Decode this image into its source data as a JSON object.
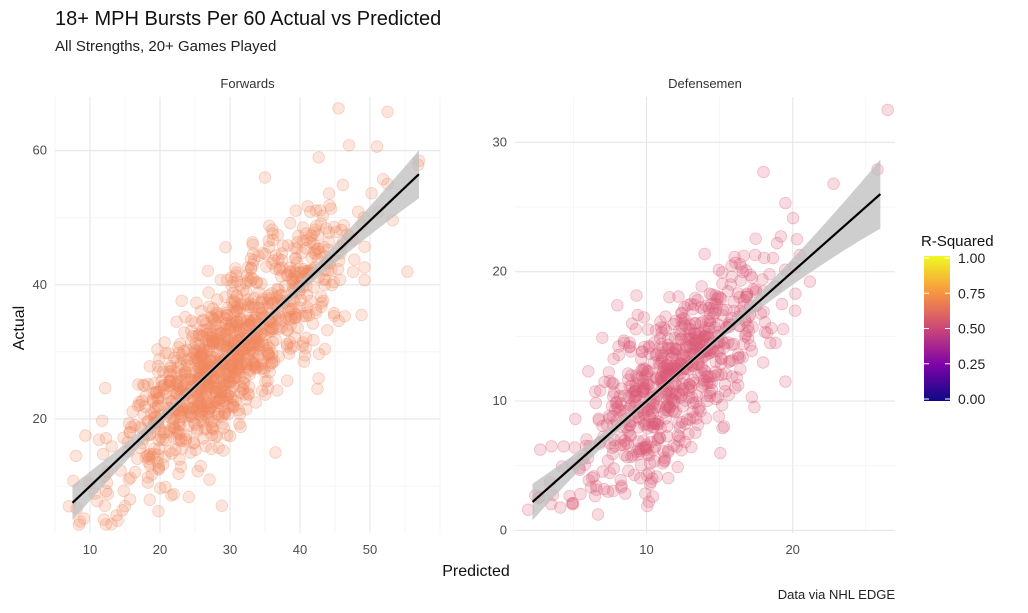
{
  "title": "18+ MPH Bursts Per 60 Actual vs Predicted",
  "subtitle": "All Strengths, 20+ Games Played",
  "caption": "Data via NHL EDGE",
  "colors": {
    "forwards_points": "#f0875f",
    "defensemen_points": "#dc5a78",
    "fit_line": "#000000",
    "ribbon": "#bdbdbd",
    "grid": "#ebebeb"
  },
  "chart_data": {
    "type": "scatter",
    "xlabel": "Predicted",
    "ylabel": "Actual",
    "grid": true,
    "legend": {
      "title": "R-Squared",
      "position": "right",
      "range": [
        0,
        1
      ],
      "ticks": [
        "1.00",
        "0.75",
        "0.50",
        "0.25",
        "0.00"
      ],
      "colormap": "plasma"
    },
    "panels": [
      {
        "name": "Forwards",
        "xlim": [
          5,
          60
        ],
        "ylim": [
          3,
          68
        ],
        "xticks": [
          10,
          20,
          30,
          40,
          50
        ],
        "yticks": [
          20,
          40,
          60
        ],
        "fit": {
          "x": [
            7.5,
            57
          ],
          "y": [
            7.5,
            56.5
          ]
        },
        "point_summary": {
          "count_approx": 1100,
          "x_center": 30,
          "x_sd": 8,
          "residual_sd": 5.5
        },
        "highlighted_points": [
          [
            45.5,
            66.3
          ],
          [
            52.5,
            65.8
          ],
          [
            47,
            60.8
          ],
          [
            51,
            60.6
          ],
          [
            57,
            58.5
          ],
          [
            35,
            56
          ],
          [
            8,
            14.5
          ],
          [
            12,
            5
          ],
          [
            7,
            7
          ],
          [
            15,
            7
          ],
          [
            36.5,
            15
          ],
          [
            42.5,
            24.5
          ]
        ]
      },
      {
        "name": "Defensemen",
        "xlim": [
          1,
          27
        ],
        "ylim": [
          -0.2,
          33.5
        ],
        "xticks": [
          10,
          20
        ],
        "yticks": [
          0,
          10,
          20,
          30
        ],
        "fit": {
          "x": [
            2.2,
            26
          ],
          "y": [
            2.2,
            26
          ]
        },
        "point_summary": {
          "count_approx": 700,
          "x_center": 12,
          "x_sd": 3.4,
          "residual_sd": 3
        },
        "highlighted_points": [
          [
            26.5,
            32.5
          ],
          [
            25.8,
            27.9
          ],
          [
            22.8,
            26.8
          ],
          [
            18,
            27.7
          ],
          [
            19.5,
            25.3
          ],
          [
            1.9,
            1.6
          ],
          [
            3.5,
            6.5
          ],
          [
            19.5,
            11.5
          ],
          [
            17.2,
            10.3
          ]
        ]
      }
    ]
  }
}
